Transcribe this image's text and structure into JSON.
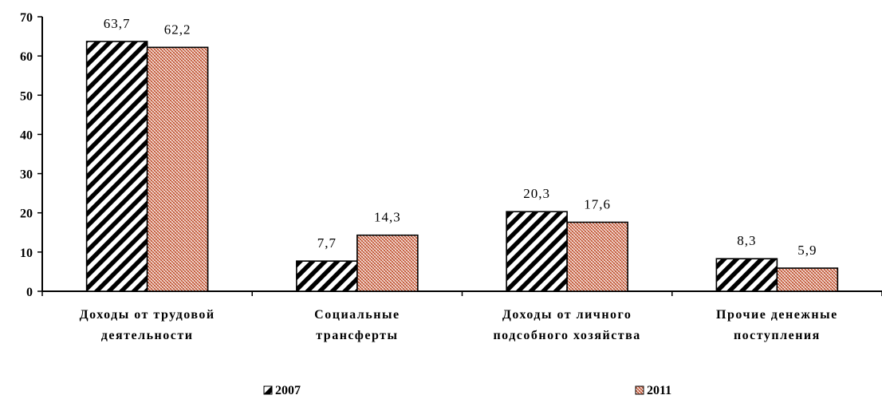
{
  "chart_data": {
    "type": "bar",
    "categories": [
      [
        "Доходы от трудовой",
        "деятельности"
      ],
      [
        "Социальные",
        "трансферты"
      ],
      [
        "Доходы от личного",
        "подсобного хозяйства"
      ],
      [
        "Прочие денежные",
        "поступления"
      ]
    ],
    "series": [
      {
        "name": "2007",
        "values": [
          63.7,
          7.7,
          20.3,
          8.3
        ],
        "labels": [
          "63,7",
          "7,7",
          "20,3",
          "8,3"
        ],
        "pattern": "diagonal-hatch",
        "color": "#000000"
      },
      {
        "name": "2011",
        "values": [
          62.2,
          14.3,
          17.6,
          5.9
        ],
        "labels": [
          "62,2",
          "14,3",
          "17,6",
          "5,9"
        ],
        "pattern": "crosshatch-brick",
        "color": "#c0502e"
      }
    ],
    "ylim": [
      0,
      70
    ],
    "yticks": [
      0,
      10,
      20,
      30,
      40,
      50,
      60,
      70
    ],
    "grid": false,
    "legend_position": "bottom"
  }
}
